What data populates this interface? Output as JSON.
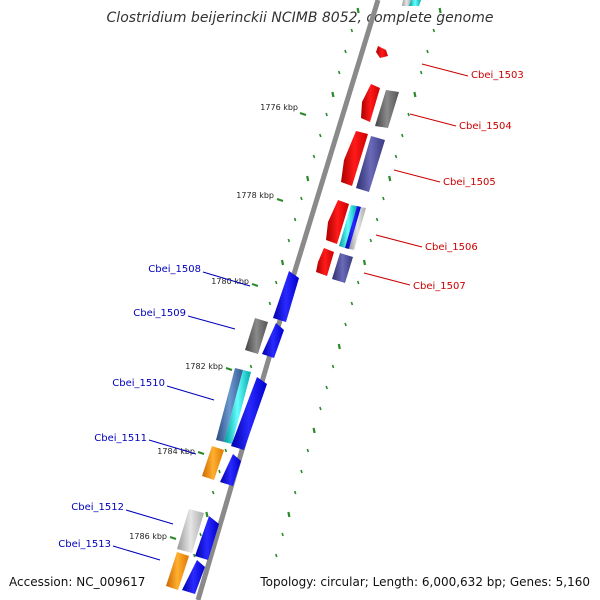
{
  "title": "Clostridium beijerinckii NCIMB 8052, complete genome",
  "footer": {
    "accession": "Accession: NC_009617",
    "topology": "Topology: circular; Length: 6,000,632 bp; Genes: 5,160"
  },
  "colors": {
    "forward_label": "#cc0000",
    "reverse_label": "#0000bb",
    "backbone": "#8a8a8a",
    "tick": "#2a8a2a",
    "red": "#ee0000",
    "blue": "#1010ee",
    "gray": "#6a6a6a",
    "light_gray": "#c8c8c8",
    "purple": "#4a4a9a",
    "cyan": "#22cccc",
    "steel_blue": "#4a78b0",
    "orange": "#ff9900"
  },
  "scale_ticks": [
    {
      "label": "1776 kbp"
    },
    {
      "label": "1778 kbp"
    },
    {
      "label": "1780 kbp"
    },
    {
      "label": "1782 kbp"
    },
    {
      "label": "1784 kbp"
    },
    {
      "label": "1786 kbp"
    }
  ],
  "forward_genes": [
    {
      "label": "Cbei_1503"
    },
    {
      "label": "Cbei_1504"
    },
    {
      "label": "Cbei_1505"
    },
    {
      "label": "Cbei_1506"
    },
    {
      "label": "Cbei_1507"
    }
  ],
  "reverse_genes": [
    {
      "label": "Cbei_1508"
    },
    {
      "label": "Cbei_1509"
    },
    {
      "label": "Cbei_1510"
    },
    {
      "label": "Cbei_1511"
    },
    {
      "label": "Cbei_1512"
    },
    {
      "label": "Cbei_1513"
    }
  ]
}
